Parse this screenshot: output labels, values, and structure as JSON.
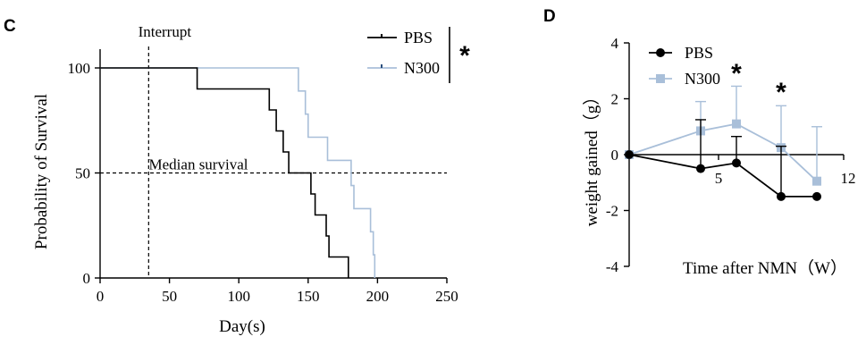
{
  "chart_data": [
    {
      "panel": "C",
      "type": "line",
      "subtype": "kaplan-meier step",
      "xlabel": "Day(s)",
      "ylabel": "Probability of Survival",
      "xlim": [
        0,
        250
      ],
      "ylim": [
        0,
        100
      ],
      "xticks": [
        0,
        50,
        100,
        150,
        200,
        250
      ],
      "yticks": [
        0,
        50,
        100
      ],
      "grid": false,
      "legend_position": "top-right",
      "annotations": {
        "interrupt": {
          "label": "Interrupt",
          "x": 35
        },
        "median": {
          "label": "Median survival",
          "y": 50
        }
      },
      "significance": "*",
      "series": [
        {
          "name": "PBS",
          "color": "#000000",
          "steps": [
            [
              0,
              100
            ],
            [
              70,
              100
            ],
            [
              70,
              90
            ],
            [
              122,
              90
            ],
            [
              122,
              80
            ],
            [
              127,
              80
            ],
            [
              127,
              70
            ],
            [
              132,
              70
            ],
            [
              132,
              60
            ],
            [
              136,
              60
            ],
            [
              136,
              50
            ],
            [
              152,
              50
            ],
            [
              152,
              40
            ],
            [
              155,
              40
            ],
            [
              155,
              30
            ],
            [
              163,
              30
            ],
            [
              163,
              20
            ],
            [
              165,
              20
            ],
            [
              165,
              10
            ],
            [
              179,
              10
            ],
            [
              179,
              0
            ]
          ]
        },
        {
          "name": "N300",
          "color": "#a9bfd9",
          "steps": [
            [
              0,
              100
            ],
            [
              143,
              100
            ],
            [
              143,
              89
            ],
            [
              148,
              89
            ],
            [
              148,
              78
            ],
            [
              150,
              78
            ],
            [
              150,
              67
            ],
            [
              164,
              67
            ],
            [
              164,
              56
            ],
            [
              181,
              56
            ],
            [
              181,
              44
            ],
            [
              183,
              44
            ],
            [
              183,
              33
            ],
            [
              195,
              33
            ],
            [
              195,
              22
            ],
            [
              197,
              22
            ],
            [
              197,
              11
            ],
            [
              198,
              11
            ],
            [
              198,
              0
            ]
          ]
        }
      ]
    },
    {
      "panel": "D",
      "type": "line",
      "xlabel": "Time after NMN（W）",
      "ylabel": "weight gained（g）",
      "xlim": [
        0,
        12
      ],
      "ylim": [
        -4,
        4
      ],
      "xticks": [
        5,
        12
      ],
      "yticks": [
        -4,
        -2,
        0,
        2,
        4
      ],
      "grid": false,
      "legend_position": "top-left",
      "significance": [
        {
          "x": 6,
          "label": "*"
        },
        {
          "x": 8.5,
          "label": "*"
        }
      ],
      "series": [
        {
          "name": "PBS",
          "color": "#000000",
          "marker": "circle",
          "x": [
            0,
            4,
            6,
            8.5,
            10.5
          ],
          "y": [
            0,
            -0.5,
            -0.3,
            -1.5,
            -1.5
          ],
          "error_up": [
            0,
            1.75,
            0.95,
            1.8,
            0
          ]
        },
        {
          "name": "N300",
          "color": "#a9bfd9",
          "marker": "square",
          "x": [
            0,
            4,
            6,
            8.5,
            10.5
          ],
          "y": [
            0,
            0.85,
            1.1,
            0.25,
            -0.95
          ],
          "error_up": [
            0,
            1.05,
            1.35,
            1.5,
            1.95
          ]
        }
      ]
    }
  ]
}
